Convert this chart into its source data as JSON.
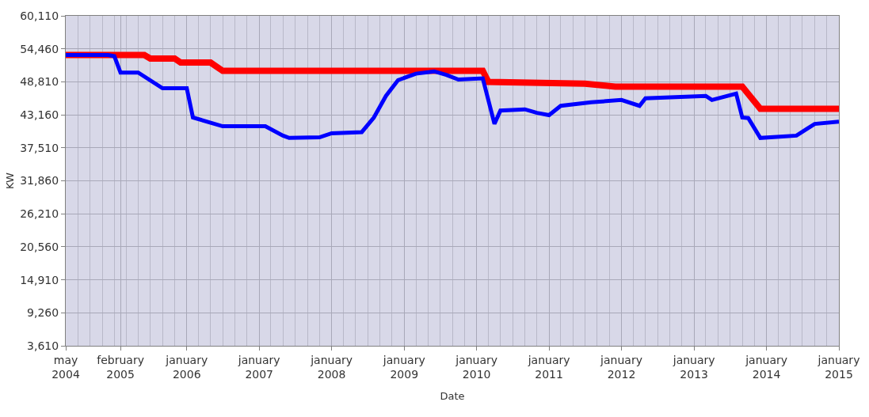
{
  "chart_data": {
    "type": "line",
    "xlabel": "Date",
    "ylabel": "KW",
    "xlim": [
      "2004-05",
      "2015-01"
    ],
    "xticks": [
      {
        "value": "2004-05",
        "label": "may\n2004"
      },
      {
        "value": "2005-02",
        "label": "february\n2005"
      },
      {
        "value": "2006-01",
        "label": "january\n2006"
      },
      {
        "value": "2007-01",
        "label": "january\n2007"
      },
      {
        "value": "2008-01",
        "label": "january\n2008"
      },
      {
        "value": "2009-01",
        "label": "january\n2009"
      },
      {
        "value": "2010-01",
        "label": "january\n2010"
      },
      {
        "value": "2011-01",
        "label": "january\n2011"
      },
      {
        "value": "2012-01",
        "label": "january\n2012"
      },
      {
        "value": "2013-01",
        "label": "january\n2013"
      },
      {
        "value": "2014-01",
        "label": "january\n2014"
      },
      {
        "value": "2015-01",
        "label": "january\n2015"
      }
    ],
    "ylim": [
      3610,
      60110
    ],
    "yticks": [
      {
        "value": 3610,
        "label": "3,610"
      },
      {
        "value": 9260,
        "label": "9,260"
      },
      {
        "value": 14910,
        "label": "14,910"
      },
      {
        "value": 20560,
        "label": "20,560"
      },
      {
        "value": 26210,
        "label": "26,210"
      },
      {
        "value": 31860,
        "label": "31,860"
      },
      {
        "value": 37510,
        "label": "37,510"
      },
      {
        "value": 43160,
        "label": "43,160"
      },
      {
        "value": 48810,
        "label": "48,810"
      },
      {
        "value": 54460,
        "label": "54,460"
      },
      {
        "value": 60110,
        "label": "60,110"
      }
    ],
    "grid": true,
    "marker": "none",
    "line_style": "solid",
    "series": [
      {
        "color": "#ff0000",
        "x": [
          "2004-05",
          "2005-06",
          "2005-07",
          "2005-11",
          "2005-12",
          "2006-05",
          "2006-07",
          "2010-02",
          "2010-03",
          "2011-07",
          "2011-12",
          "2013-09",
          "2013-12",
          "2015-01"
        ],
        "values": [
          53400,
          53400,
          52800,
          52800,
          52100,
          52100,
          50700,
          50700,
          48800,
          48500,
          48000,
          48000,
          44200,
          44200
        ]
      },
      {
        "color": "#0000ff",
        "x": [
          "2004-05",
          "2004-12",
          "2005-01",
          "2005-02",
          "2005-05",
          "2005-09",
          "2006-01",
          "2006-02",
          "2006-07",
          "2007-02",
          "2007-05",
          "2007-06",
          "2007-11",
          "2008-01",
          "2008-06",
          "2008-08",
          "2008-10",
          "2008-12",
          "2009-03",
          "2009-06",
          "2009-08",
          "2009-10",
          "2010-02",
          "2010-04",
          "2010-05",
          "2010-09",
          "2010-11",
          "2011-01",
          "2011-03",
          "2011-08",
          "2012-01",
          "2012-04",
          "2012-05",
          "2013-03",
          "2013-04",
          "2013-08",
          "2013-09",
          "2013-10",
          "2013-12",
          "2014-06",
          "2014-09",
          "2015-01"
        ],
        "values": [
          53400,
          53400,
          53200,
          50400,
          50400,
          47700,
          47700,
          42700,
          41200,
          41200,
          39600,
          39200,
          39300,
          40000,
          40200,
          42700,
          46400,
          49100,
          50200,
          50600,
          50000,
          49200,
          49400,
          41600,
          43900,
          44100,
          43500,
          43100,
          44700,
          45300,
          45700,
          44700,
          46000,
          46400,
          45700,
          46800,
          42700,
          42600,
          39200,
          39600,
          41600,
          42000
        ]
      }
    ]
  }
}
